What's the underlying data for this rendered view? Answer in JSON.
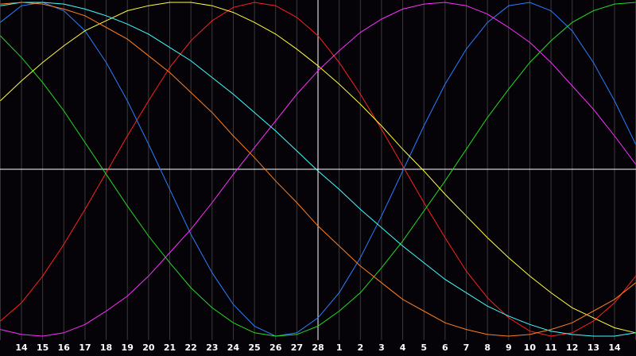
{
  "chart_data": {
    "type": "line",
    "categories": [
      null,
      "14",
      "15",
      "16",
      "17",
      "18",
      "19",
      "20",
      "21",
      "22",
      "23",
      "24",
      "25",
      "26",
      "27",
      "28",
      "1",
      "2",
      "3",
      "4",
      "5",
      "6",
      "7",
      "8",
      "9",
      "10",
      "11",
      "12",
      "13",
      "14",
      null
    ],
    "ylim": [
      -100,
      100
    ],
    "grid": true,
    "series": [
      {
        "color": "#ff2020",
        "values": [
          -91,
          -80,
          -64,
          -45,
          -24,
          -2,
          20,
          41,
          61,
          77,
          89,
          97,
          100,
          98,
          91,
          80,
          64,
          45,
          24,
          2,
          -20,
          -41,
          -61,
          -77,
          -89,
          -97,
          -100,
          -98,
          -91,
          -80,
          -64
        ]
      },
      {
        "color": "#2a7fff",
        "values": [
          88,
          98,
          100,
          95,
          83,
          64,
          41,
          15,
          -12,
          -39,
          -62,
          -81,
          -94,
          -100,
          -98,
          -89,
          -74,
          -53,
          -28,
          -1,
          26,
          51,
          72,
          88,
          98,
          100,
          95,
          83,
          64,
          41,
          15
        ]
      },
      {
        "color": "#22dd22",
        "values": [
          80,
          67,
          52,
          35,
          16,
          -3,
          -22,
          -40,
          -56,
          -71,
          -83,
          -92,
          -98,
          -100,
          -99,
          -94,
          -85,
          -74,
          -59,
          -43,
          -25,
          -7,
          12,
          31,
          48,
          64,
          77,
          88,
          95,
          99,
          100
        ]
      },
      {
        "color": "#ffff40",
        "values": [
          41,
          53,
          64,
          74,
          83,
          89,
          95,
          98,
          100,
          100,
          98,
          94,
          88,
          81,
          72,
          62,
          51,
          39,
          26,
          12,
          -1,
          -15,
          -28,
          -41,
          -53,
          -64,
          -74,
          -83,
          -89,
          -95,
          -98
        ]
      },
      {
        "color": "#ff30ff",
        "values": [
          -96,
          -99,
          -100,
          -98,
          -93,
          -85,
          -76,
          -64,
          -50,
          -36,
          -20,
          -3,
          13,
          29,
          45,
          59,
          71,
          82,
          90,
          96,
          99,
          100,
          98,
          93,
          85,
          76,
          64,
          50,
          36,
          20,
          3
        ]
      },
      {
        "color": "#40ffff",
        "values": [
          98,
          100,
          100,
          99,
          96,
          92,
          87,
          81,
          73,
          65,
          55,
          45,
          34,
          23,
          11,
          -1,
          -12,
          -24,
          -35,
          -46,
          -56,
          -66,
          -74,
          -82,
          -88,
          -93,
          -97,
          -99,
          -100,
          -100,
          -98
        ]
      },
      {
        "color": "#ff8020",
        "values": [
          99,
          100,
          99,
          96,
          92,
          85,
          78,
          68,
          58,
          46,
          34,
          20,
          7,
          -7,
          -20,
          -34,
          -46,
          -58,
          -68,
          -78,
          -85,
          -92,
          -96,
          -99,
          -100,
          -99,
          -96,
          -92,
          -85,
          -78,
          -68
        ]
      }
    ]
  }
}
